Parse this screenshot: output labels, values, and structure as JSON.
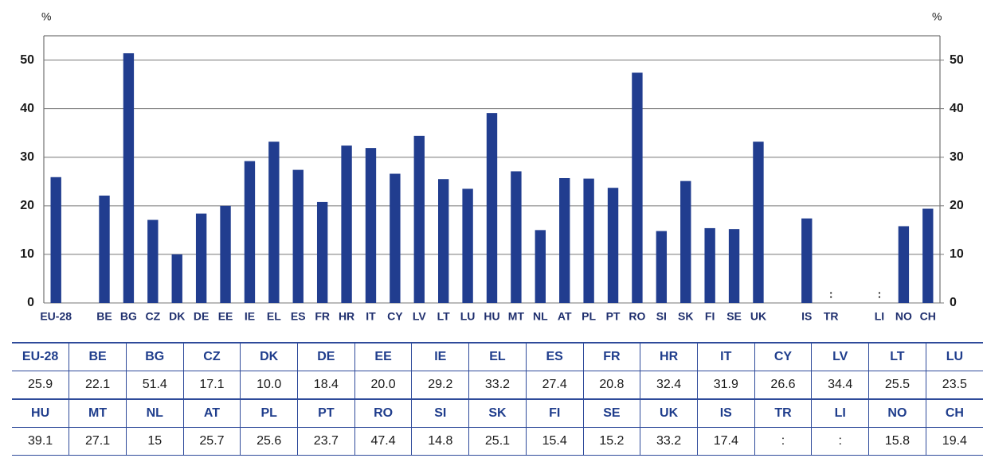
{
  "chart_data": {
    "type": "bar",
    "ylabel": "%",
    "y2label": "%",
    "categories": [
      "EU-28",
      null,
      "BE",
      "BG",
      "CZ",
      "DK",
      "DE",
      "EE",
      "IE",
      "EL",
      "ES",
      "FR",
      "HR",
      "IT",
      "CY",
      "LV",
      "LT",
      "LU",
      "HU",
      "MT",
      "NL",
      "AT",
      "PL",
      "PT",
      "RO",
      "SI",
      "SK",
      "FI",
      "SE",
      "UK",
      null,
      "IS",
      "TR",
      null,
      "LI",
      "NO",
      "CH"
    ],
    "values": [
      25.9,
      null,
      22.1,
      51.4,
      17.1,
      10.0,
      18.4,
      20.0,
      29.2,
      33.2,
      27.4,
      20.8,
      32.4,
      31.9,
      26.6,
      34.4,
      25.5,
      23.5,
      39.1,
      27.1,
      15,
      25.7,
      25.6,
      23.7,
      47.4,
      14.8,
      25.1,
      15.4,
      15.2,
      33.2,
      null,
      17.4,
      null,
      null,
      null,
      15.8,
      19.4
    ],
    "value_labels": [
      null,
      null,
      null,
      null,
      null,
      null,
      null,
      null,
      null,
      null,
      null,
      null,
      null,
      null,
      null,
      null,
      null,
      null,
      null,
      null,
      null,
      null,
      null,
      null,
      null,
      null,
      null,
      null,
      null,
      null,
      null,
      null,
      ":",
      null,
      ":",
      null,
      null
    ],
    "color": "#213d8f",
    "ylim": [
      0,
      55
    ],
    "yticks": [
      0,
      10,
      20,
      30,
      40,
      50
    ],
    "y2lim": [
      0,
      55
    ],
    "y2ticks": [
      0,
      10,
      20,
      30,
      40,
      50
    ],
    "grid": true
  },
  "table": {
    "rows": [
      [
        "EU-28",
        "BE",
        "BG",
        "CZ",
        "DK",
        "DE",
        "EE",
        "IE",
        "EL",
        "ES",
        "FR",
        "HR",
        "IT",
        "CY",
        "LV",
        "LT",
        "LU"
      ],
      [
        "25.9",
        "22.1",
        "51.4",
        "17.1",
        "10.0",
        "18.4",
        "20.0",
        "29.2",
        "33.2",
        "27.4",
        "20.8",
        "32.4",
        "31.9",
        "26.6",
        "34.4",
        "25.5",
        "23.5"
      ],
      [
        "HU",
        "MT",
        "NL",
        "AT",
        "PL",
        "PT",
        "RO",
        "SI",
        "SK",
        "FI",
        "SE",
        "UK",
        "IS",
        "TR",
        "LI",
        "NO",
        "CH"
      ],
      [
        "39.1",
        "27.1",
        "15",
        "25.7",
        "25.6",
        "23.7",
        "47.4",
        "14.8",
        "25.1",
        "15.4",
        "15.2",
        "33.2",
        "17.4",
        ":",
        ":",
        "15.8",
        "19.4"
      ]
    ]
  }
}
